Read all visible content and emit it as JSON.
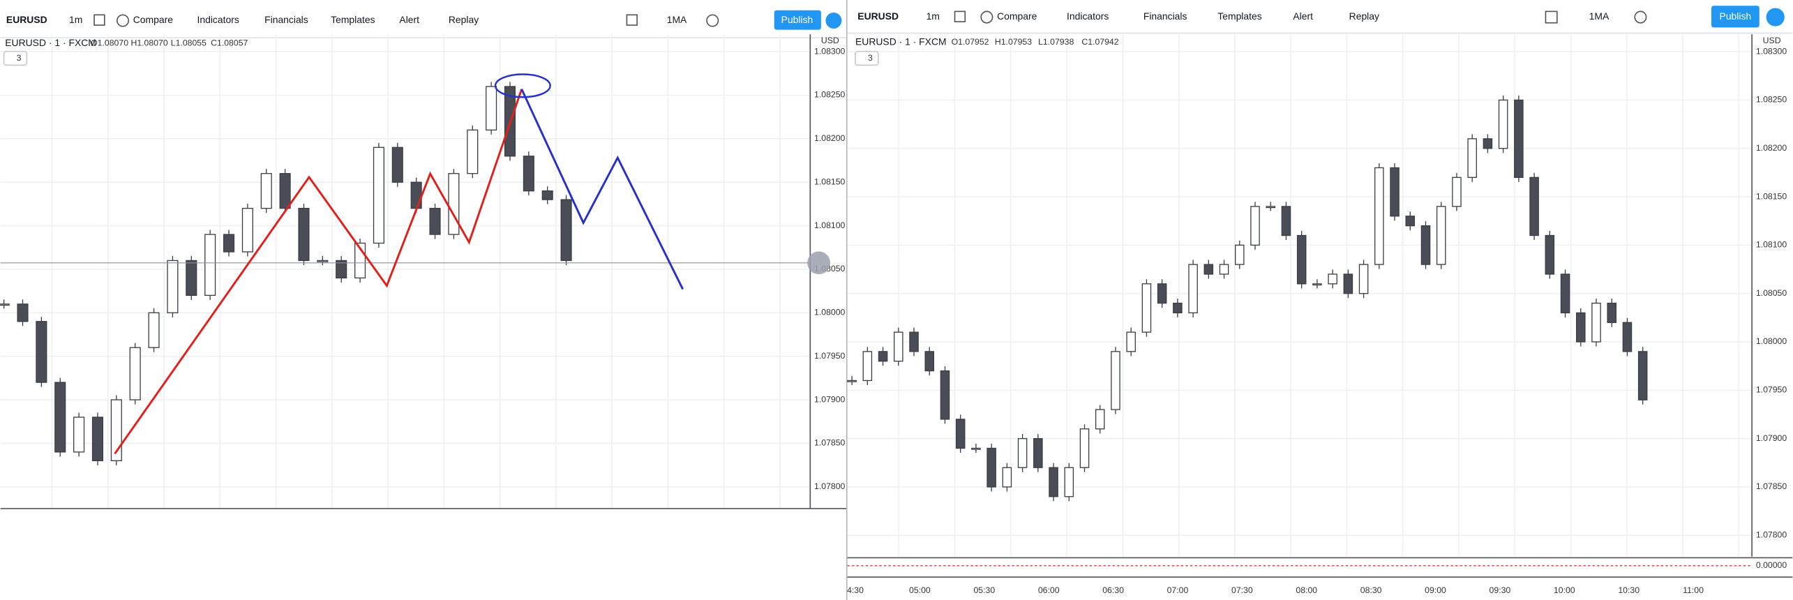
{
  "left": {
    "toolbar": {
      "symbol": "EURUSD",
      "interval": "1m",
      "buttons": [
        "Compare",
        "Indicators",
        "Financials",
        "Templates",
        "Alert",
        "Replay"
      ],
      "ma": "1MA",
      "publish": "Publish"
    },
    "legend": {
      "title": "EURUSD · 1 · FXCM",
      "ohlc": [
        "O1.08070",
        "H1.08070",
        "L1.08055",
        "C1.08057"
      ],
      "badge": "3"
    },
    "currency": "USD",
    "ylim": [
      1.07775,
      1.0832
    ],
    "yticks": [
      {
        "value": 1.083,
        "label": "1.08300"
      },
      {
        "value": 1.0825,
        "label": "1.08250"
      },
      {
        "value": 1.082,
        "label": "1.08200"
      },
      {
        "value": 1.0815,
        "label": "1.08150"
      },
      {
        "value": 1.081,
        "label": "1.08100"
      },
      {
        "value": 1.0805,
        "label": "1.08050"
      },
      {
        "value": 1.08,
        "label": "1.08000"
      },
      {
        "value": 1.0795,
        "label": "1.07950"
      },
      {
        "value": 1.079,
        "label": "1.07900"
      },
      {
        "value": 1.0785,
        "label": "1.07850"
      },
      {
        "value": 1.078,
        "label": "1.07800"
      }
    ],
    "closes": [
      1.0801,
      1.0799,
      1.0792,
      1.0784,
      1.0788,
      1.0783,
      1.079,
      1.0796,
      1.08,
      1.0806,
      1.0802,
      1.0809,
      1.0807,
      1.0812,
      1.0816,
      1.0812,
      1.0806,
      1.0806,
      1.0804,
      1.0808,
      1.0819,
      1.0815,
      1.0812,
      1.0809,
      1.0816,
      1.0821,
      1.0826,
      1.0818,
      1.0814,
      1.0813,
      1.0806
    ]
  },
  "right": {
    "toolbar": {
      "symbol": "EURUSD",
      "interval": "1m",
      "buttons": [
        "Compare",
        "Indicators",
        "Financials",
        "Templates",
        "Alert",
        "Replay"
      ],
      "ma": "1MA",
      "publish": "Publish"
    },
    "legend": {
      "title": "EURUSD · 1 · FXCM",
      "ohlc": [
        "O1.07952",
        "H1.07953",
        "L1.07938",
        "C1.07942"
      ],
      "badge": "3"
    },
    "currency": "USD",
    "ylim": [
      1.07778,
      1.08318
    ],
    "yticks": [
      {
        "value": 1.083,
        "label": "1.08300"
      },
      {
        "value": 1.0825,
        "label": "1.08250"
      },
      {
        "value": 1.082,
        "label": "1.08200"
      },
      {
        "value": 1.0815,
        "label": "1.08150"
      },
      {
        "value": 1.081,
        "label": "1.08100"
      },
      {
        "value": 1.0805,
        "label": "1.08050"
      },
      {
        "value": 1.08,
        "label": "1.08000"
      },
      {
        "value": 1.0795,
        "label": "1.07950"
      },
      {
        "value": 1.079,
        "label": "1.07900"
      },
      {
        "value": 1.0785,
        "label": "1.07850"
      },
      {
        "value": 1.078,
        "label": "1.07800"
      }
    ],
    "indicator_ticks": [
      {
        "value": 0,
        "label": "0.00000"
      }
    ],
    "time_ticks": [
      "4:30",
      "05:00",
      "05:30",
      "06:00",
      "06:30",
      "07:00",
      "07:30",
      "08:00",
      "08:30",
      "09:00",
      "09:30",
      "10:00",
      "10:30",
      "11:00"
    ],
    "closes": [
      1.0796,
      1.0799,
      1.0798,
      1.0801,
      1.0799,
      1.0797,
      1.0792,
      1.0789,
      1.0789,
      1.0785,
      1.0787,
      1.079,
      1.0787,
      1.0784,
      1.0787,
      1.0791,
      1.0793,
      1.0799,
      1.0801,
      1.0806,
      1.0804,
      1.0803,
      1.0808,
      1.0807,
      1.0808,
      1.081,
      1.0814,
      1.0814,
      1.0811,
      1.0806,
      1.0806,
      1.0807,
      1.0805,
      1.0808,
      1.0818,
      1.0813,
      1.0812,
      1.0808,
      1.0814,
      1.0817,
      1.0821,
      1.082,
      1.0825,
      1.0817,
      1.0811,
      1.0807,
      1.0803,
      1.08,
      1.0804,
      1.0802,
      1.0799,
      1.0794
    ]
  }
}
